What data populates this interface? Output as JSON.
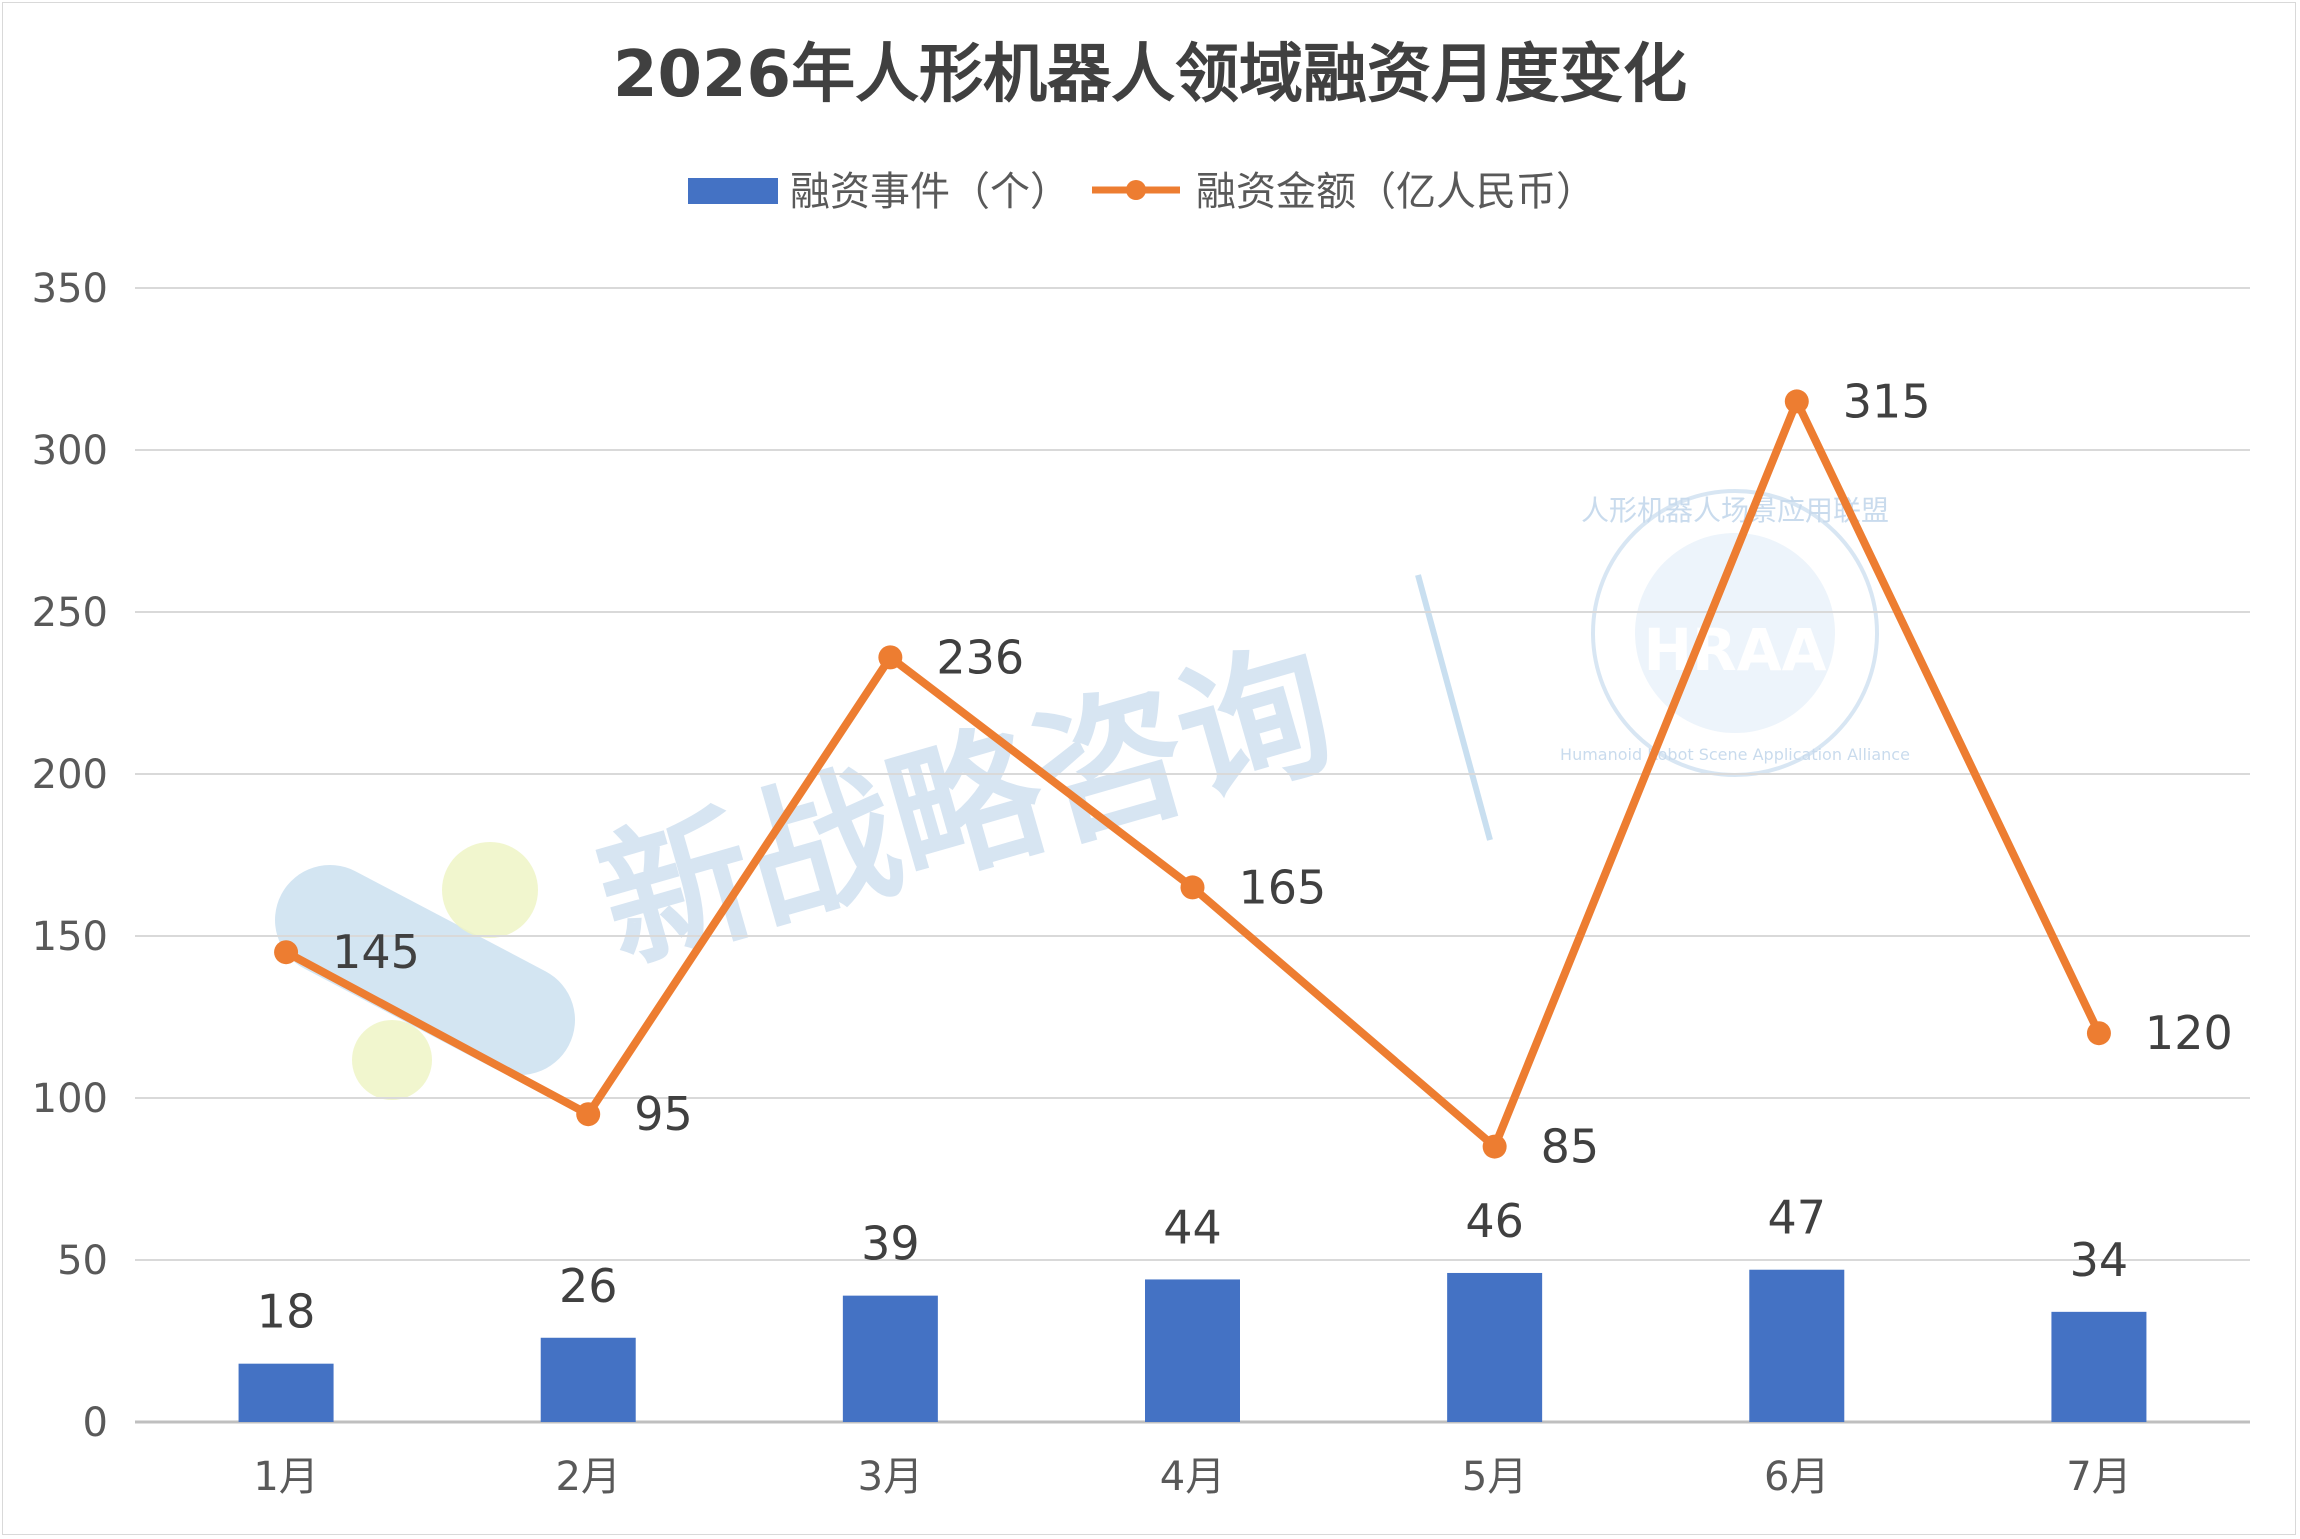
{
  "chart_data": {
    "type": "bar+line",
    "title": "2026年人形机器人领域融资月度变化",
    "categories": [
      "1月",
      "2月",
      "3月",
      "4月",
      "5月",
      "6月",
      "7月"
    ],
    "series": [
      {
        "name": "融资事件（个）",
        "type": "bar",
        "color": "#4472c4",
        "values": [
          18,
          26,
          39,
          44,
          46,
          47,
          34
        ]
      },
      {
        "name": "融资金额（亿人民币）",
        "type": "line",
        "color": "#ed7d31",
        "values": [
          145,
          95,
          236,
          165,
          85,
          315,
          120
        ]
      }
    ],
    "ylim": [
      0,
      350
    ],
    "yticks": [
      0,
      50,
      100,
      150,
      200,
      250,
      300,
      350
    ],
    "grid": true,
    "legend": "top-center"
  },
  "watermark": {
    "text": "新战略咨询",
    "seal_cn": "人形机器人场景应用联盟",
    "seal_abbr": "HRAA",
    "seal_en": "Humanoid Robot Scene Application Alliance"
  }
}
